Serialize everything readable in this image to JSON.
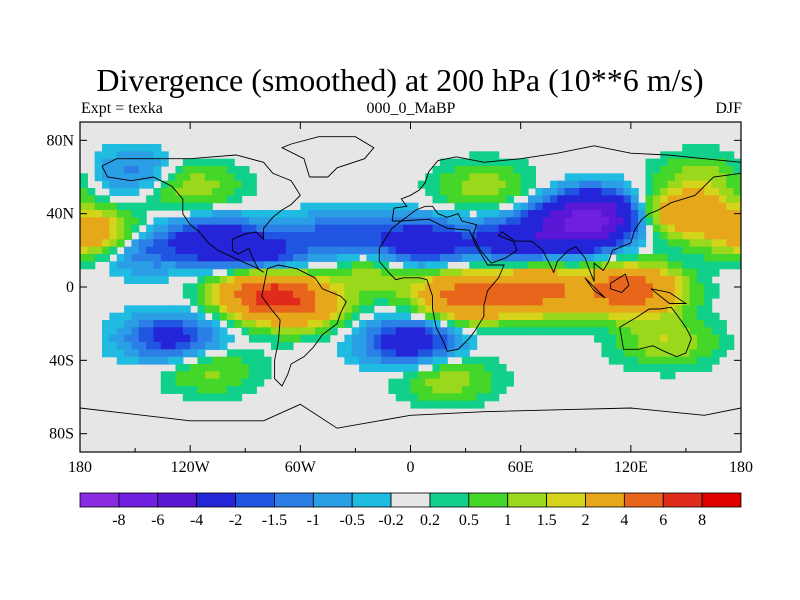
{
  "chart_data": {
    "type": "heatmap",
    "subtype": "filled-contour-map",
    "title": "Divergence (smoothed) at 200 hPa (10**6 m/s)",
    "left_label": "Expt = texka",
    "center_label": "000_0_MaBP",
    "right_label": "DJF",
    "x_axis": {
      "range": [
        -180,
        180
      ],
      "ticks": [
        -180,
        -120,
        -60,
        0,
        60,
        120,
        180
      ],
      "tick_labels": [
        "180",
        "120W",
        "60W",
        "0",
        "60E",
        "120E",
        "180"
      ]
    },
    "y_axis": {
      "range": [
        -90,
        90
      ],
      "ticks": [
        80,
        40,
        0,
        -40,
        -80
      ],
      "tick_labels": [
        "80N",
        "40N",
        "0",
        "40S",
        "80S"
      ]
    },
    "colorbar": {
      "levels": [
        -8,
        -6,
        -4,
        -2,
        -1.5,
        -1,
        -0.5,
        -0.2,
        0.2,
        0.5,
        1,
        1.5,
        2,
        4,
        6,
        8
      ],
      "labels": [
        "-8",
        "-6",
        "-4",
        "-2",
        "-1.5",
        "-1",
        "-0.5",
        "-0.2",
        "0.2",
        "0.5",
        "1",
        "1.5",
        "2",
        "4",
        "6",
        "8"
      ],
      "colors": [
        "#8a2be2",
        "#6f1fe0",
        "#5a17d6",
        "#2424d8",
        "#1f55e0",
        "#2b7fe6",
        "#2a9fe6",
        "#1fbbe0",
        "#e6e6e6",
        "#10d08a",
        "#44d628",
        "#9ad81c",
        "#d4d41a",
        "#e6a81a",
        "#e8661c",
        "#e02a1a",
        "#e00000"
      ]
    },
    "features": [
      {
        "lon": -170,
        "lat": 28,
        "value": 3.5
      },
      {
        "lon": -150,
        "lat": 22,
        "value": -2.2
      },
      {
        "lon": -105,
        "lat": 25,
        "value": -3
      },
      {
        "lon": -80,
        "lat": 15,
        "value": -2.4
      },
      {
        "lon": -80,
        "lat": -2,
        "value": 5.5
      },
      {
        "lon": -62,
        "lat": -10,
        "value": 3.5
      },
      {
        "lon": -40,
        "lat": 28,
        "value": -1.8
      },
      {
        "lon": -20,
        "lat": 8,
        "value": 1.3
      },
      {
        "lon": 5,
        "lat": 24,
        "value": -3
      },
      {
        "lon": 30,
        "lat": -5,
        "value": 5
      },
      {
        "lon": 55,
        "lat": 25,
        "value": -2.5
      },
      {
        "lon": 70,
        "lat": -2,
        "value": 4.5
      },
      {
        "lon": 90,
        "lat": 30,
        "value": -3.5
      },
      {
        "lon": 120,
        "lat": -2,
        "value": 5.5
      },
      {
        "lon": 100,
        "lat": 40,
        "value": -5
      },
      {
        "lon": 150,
        "lat": 40,
        "value": 3.5
      },
      {
        "lon": 0,
        "lat": -30,
        "value": -3
      },
      {
        "lon": -130,
        "lat": -28,
        "value": -2.5
      },
      {
        "lon": -110,
        "lat": -45,
        "value": 1.2
      },
      {
        "lon": 20,
        "lat": -50,
        "value": 1.4
      },
      {
        "lon": 140,
        "lat": -30,
        "value": 1.5
      },
      {
        "lon": -150,
        "lat": 62,
        "value": -1.3
      },
      {
        "lon": -120,
        "lat": 55,
        "value": 1.5
      },
      {
        "lon": 40,
        "lat": 55,
        "value": 1.3
      },
      {
        "lon": 160,
        "lat": 60,
        "value": 1.2
      }
    ]
  }
}
